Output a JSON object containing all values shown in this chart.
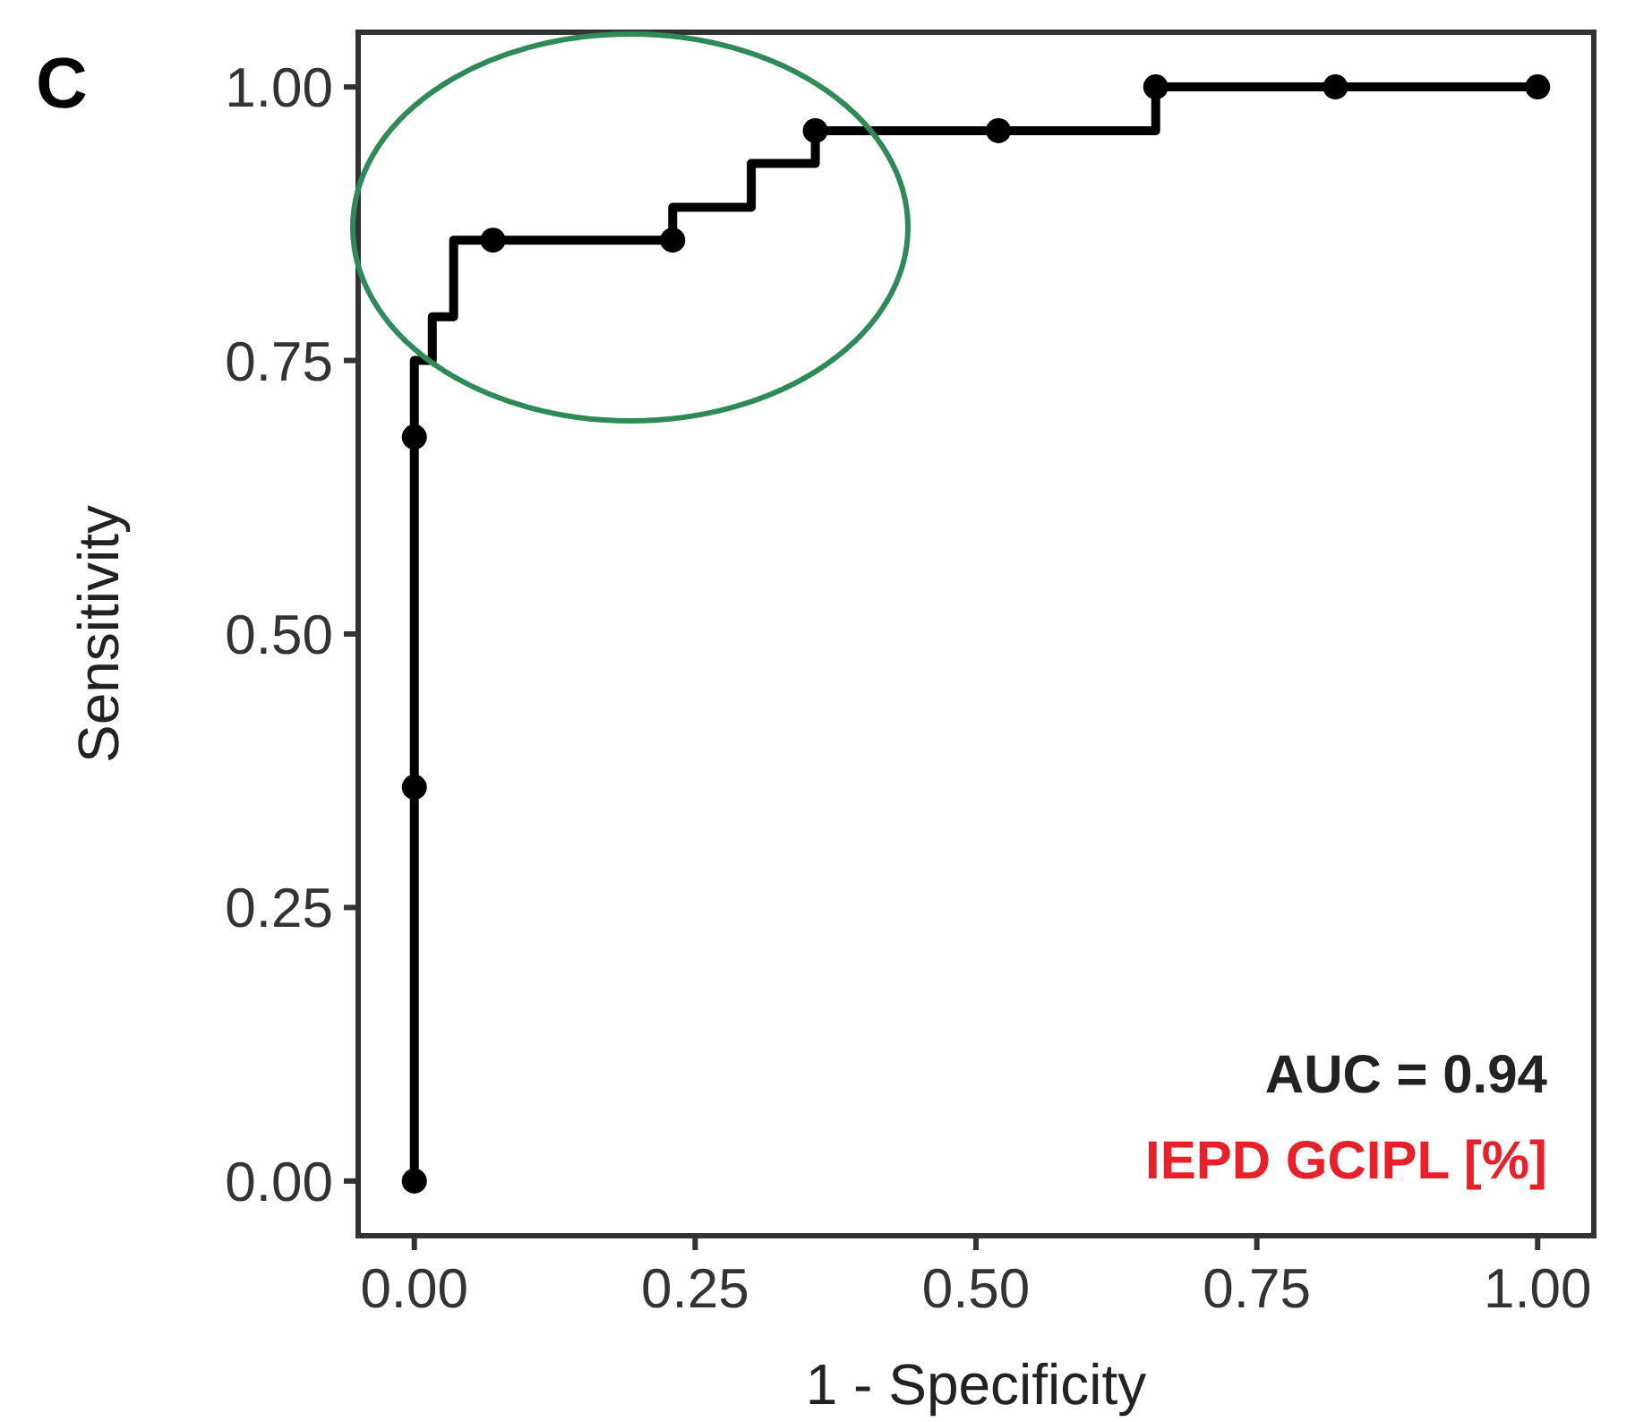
{
  "chart_data": {
    "type": "line",
    "xlabel": "1 - Specificity",
    "ylabel": "Sensitivity",
    "annotations": [
      "C",
      "AUC = 0.94",
      "IEPD GCIPL [%]"
    ],
    "xlim": [
      -0.05,
      1.05
    ],
    "ylim": [
      -0.05,
      1.05
    ],
    "xticks": [
      {
        "value": 0,
        "label": "0.00"
      },
      {
        "value": 0.25,
        "label": "0.25"
      },
      {
        "value": 0.5,
        "label": "0.50"
      },
      {
        "value": 0.75,
        "label": "0.75"
      },
      {
        "value": 1,
        "label": "1.00"
      }
    ],
    "yticks": [
      {
        "value": 0,
        "label": "0.00"
      },
      {
        "value": 0.25,
        "label": "0.25"
      },
      {
        "value": 0.5,
        "label": "0.50"
      },
      {
        "value": 0.75,
        "label": "0.75"
      },
      {
        "value": 1,
        "label": "1.00"
      }
    ],
    "series": [
      {
        "color": "#000000",
        "marker": "none",
        "x": [
          0,
          0,
          0.016,
          0.016,
          0.035,
          0.035,
          0.23,
          0.23,
          0.3,
          0.3,
          0.357,
          0.357,
          0.66,
          0.66,
          1
        ],
        "values": [
          0,
          0.75,
          0.75,
          0.79,
          0.79,
          0.86,
          0.86,
          0.89,
          0.89,
          0.93,
          0.93,
          0.96,
          0.96,
          1,
          1
        ]
      },
      {
        "type": "scatter",
        "color": "#000000",
        "marker": "circle",
        "x": [
          0,
          0,
          0,
          0.07,
          0.23,
          0.357,
          0.52,
          0.66,
          0.82,
          1
        ],
        "values": [
          0,
          0.36,
          0.68,
          0.86,
          0.86,
          0.96,
          0.96,
          1,
          1,
          1
        ]
      }
    ]
  }
}
